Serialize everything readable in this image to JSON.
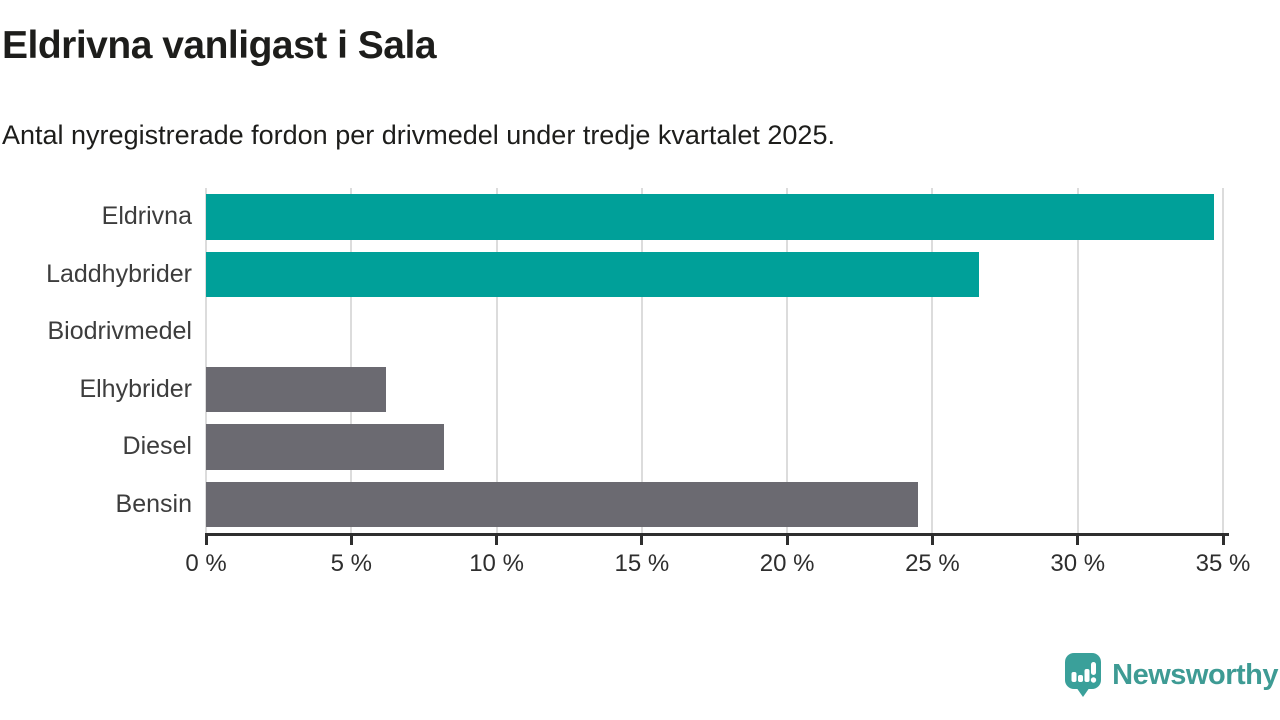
{
  "header": {
    "title": "Eldrivna vanligast i Sala",
    "subtitle": "Antal nyregistrerade fordon per drivmedel under tredje kvartalet 2025."
  },
  "chart_data": {
    "type": "bar",
    "orientation": "horizontal",
    "title": "Eldrivna vanligast i Sala",
    "subtitle": "Antal nyregistrerade fordon per drivmedel under tredje kvartalet 2025.",
    "categories": [
      "Eldrivna",
      "Laddhybrider",
      "Biodrivmedel",
      "Elhybrider",
      "Diesel",
      "Bensin"
    ],
    "values": [
      34.7,
      26.6,
      0,
      6.2,
      8.2,
      24.5
    ],
    "unit": "%",
    "bar_colors": [
      "#00a099",
      "#00a099",
      "#6b6a71",
      "#6b6a71",
      "#6b6a71",
      "#6b6a71"
    ],
    "xlim": [
      0,
      35
    ],
    "x_ticks": [
      0,
      5,
      10,
      15,
      20,
      25,
      30,
      35
    ],
    "x_tick_labels": [
      "0 %",
      "5 %",
      "10 %",
      "15 %",
      "20 %",
      "25 %",
      "30 %",
      "35 %"
    ],
    "grid": true,
    "legend": "none"
  },
  "footer": {
    "brand": "Newsworthy",
    "logo_icon": "newsworthy-speech-bubble-barchart-icon"
  },
  "colors": {
    "teal": "#00a099",
    "gray": "#6b6a71",
    "brand": "#3e9b94",
    "grid": "#dcdcdc",
    "axis": "#2f2f2f",
    "text": "#1d1d1b"
  }
}
